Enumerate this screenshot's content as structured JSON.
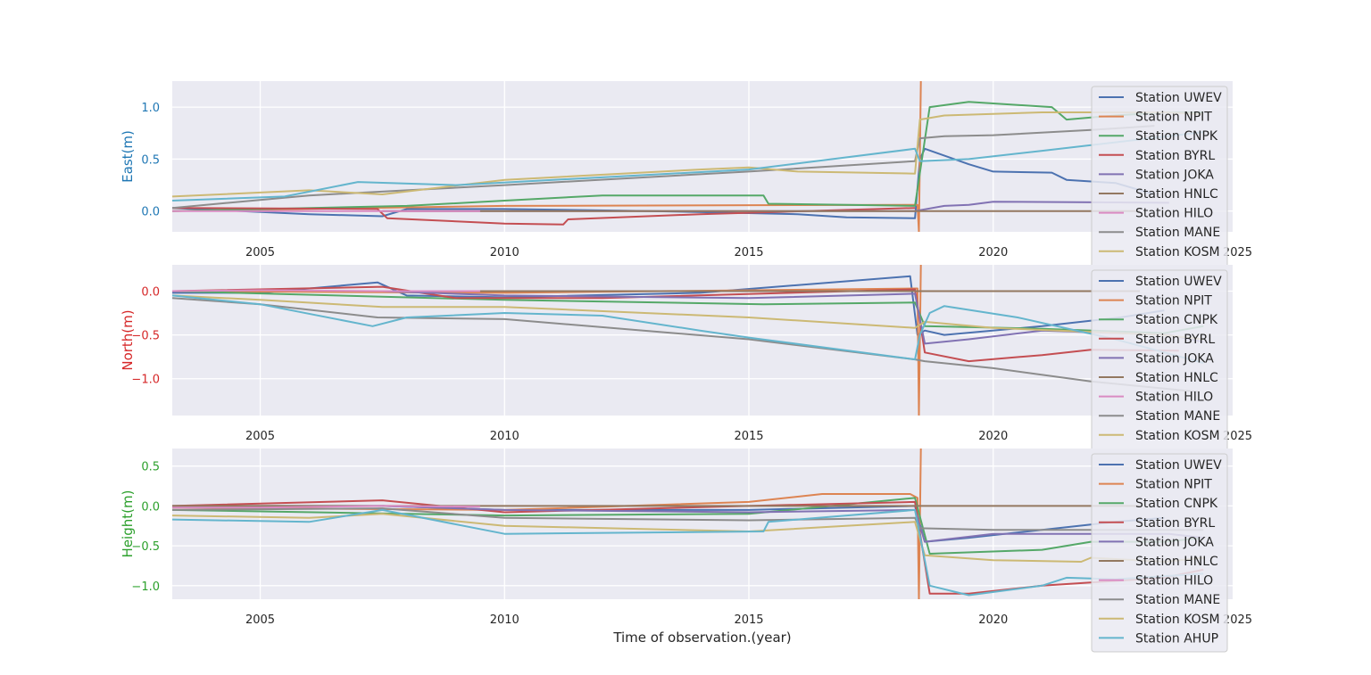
{
  "colors": {
    "background": "#eaeaf2",
    "grid": "#ffffff",
    "legend_bg": "#eaeaf2",
    "legend_border": "#cccccc",
    "east_label": "#1f77b4",
    "north_label": "#d62728",
    "height_label": "#2ca02c",
    "text": "#262626"
  },
  "chart_data": [
    {
      "type": "line",
      "panel": "east",
      "ylabel": "East(m)",
      "xlabel": "",
      "xlim": [
        2003.2,
        2024.9
      ],
      "ylim": [
        -0.2,
        1.25
      ],
      "xticks": [
        2005,
        2010,
        2015,
        2020,
        2025
      ],
      "xtick_labels": [
        "2005",
        "2010",
        "2015",
        "2020",
        "2025"
      ],
      "yticks": [
        0.0,
        0.5,
        1.0
      ],
      "ytick_labels": [
        "0.0",
        "0.5",
        "1.0"
      ],
      "grid": true,
      "legend_position": "right",
      "series": [
        {
          "name": "Station UWEV",
          "color": "#4c72b0",
          "x": [
            2003.2,
            2006,
            2007.5,
            2008,
            2010,
            2013,
            2016,
            2017,
            2018.4,
            2018.5,
            2018.6,
            2019.5,
            2020,
            2021.2,
            2021.5,
            2022.5,
            2023.3
          ],
          "y": [
            0.03,
            -0.03,
            -0.05,
            0.02,
            0.02,
            0.0,
            -0.03,
            -0.06,
            -0.07,
            0.5,
            0.6,
            0.45,
            0.38,
            0.37,
            0.3,
            0.27,
            0.16
          ]
        },
        {
          "name": "Station NPIT",
          "color": "#dd8452",
          "x": [
            2003.2,
            2010,
            2018.45,
            2018.48,
            2018.52
          ],
          "y": [
            0.0,
            0.05,
            0.06,
            -0.2,
            1.25
          ]
        },
        {
          "name": "Station CNPK",
          "color": "#55a868",
          "x": [
            2003.2,
            2008,
            2010,
            2012,
            2015.3,
            2015.4,
            2018.4,
            2018.7,
            2019.5,
            2021.2,
            2021.5,
            2022,
            2022.5,
            2023.5,
            2024.3
          ],
          "y": [
            0.0,
            0.05,
            0.1,
            0.15,
            0.15,
            0.07,
            0.05,
            1.0,
            1.05,
            1.0,
            0.88,
            0.9,
            0.92,
            0.95,
            0.95
          ]
        },
        {
          "name": "Station BYRL",
          "color": "#c44e52",
          "x": [
            2003.2,
            2007.4,
            2007.6,
            2010,
            2011.2,
            2011.3,
            2014,
            2018.4
          ],
          "y": [
            0.03,
            0.02,
            -0.07,
            -0.12,
            -0.13,
            -0.08,
            -0.03,
            0.03
          ]
        },
        {
          "name": "Station JOKA",
          "color": "#8172b3",
          "x": [
            2007.5,
            2010,
            2015,
            2018.4,
            2019,
            2019.5,
            2020,
            2023.6
          ],
          "y": [
            0.0,
            0.0,
            0.0,
            0.0,
            0.05,
            0.06,
            0.09,
            0.08
          ]
        },
        {
          "name": "Station HNLC",
          "color": "#937860",
          "x": [
            2007.5,
            2010,
            2015,
            2020,
            2023.0
          ],
          "y": [
            0.0,
            0.0,
            0.0,
            0.0,
            0.0
          ]
        },
        {
          "name": "Station HILO",
          "color": "#da8bc3",
          "x": [
            2003.2,
            2005,
            2007.5,
            2009.5
          ],
          "y": [
            0.0,
            0.0,
            0.0,
            0.0
          ]
        },
        {
          "name": "Station MANE",
          "color": "#8c8c8c",
          "x": [
            2003.2,
            2006,
            2008,
            2010,
            2015,
            2018.4,
            2018.5,
            2019,
            2020,
            2022,
            2023.3
          ],
          "y": [
            0.03,
            0.15,
            0.2,
            0.25,
            0.38,
            0.48,
            0.7,
            0.72,
            0.73,
            0.78,
            0.82
          ]
        },
        {
          "name": "Station KOSM",
          "color": "#ccb974",
          "x": [
            2003.2,
            2006,
            2007.5,
            2010,
            2014,
            2015,
            2016,
            2018.4,
            2018.5,
            2019,
            2021,
            2023.5,
            2024.3
          ],
          "y": [
            0.14,
            0.2,
            0.16,
            0.3,
            0.4,
            0.42,
            0.38,
            0.36,
            0.88,
            0.92,
            0.95,
            0.95,
            0.93
          ]
        },
        {
          "name": "Station AHUP",
          "color": "#64b5cd",
          "x": [
            2003.2,
            2005.5,
            2007,
            2009,
            2015,
            2018.4,
            2018.5,
            2019.5,
            2021,
            2024.3
          ],
          "y": [
            0.1,
            0.14,
            0.28,
            0.25,
            0.4,
            0.6,
            0.48,
            0.5,
            0.58,
            0.76
          ]
        }
      ]
    },
    {
      "type": "line",
      "panel": "north",
      "ylabel": "North(m)",
      "xlabel": "",
      "xlim": [
        2003.2,
        2024.9
      ],
      "ylim": [
        -1.42,
        0.3
      ],
      "xticks": [
        2005,
        2010,
        2015,
        2020,
        2025
      ],
      "xtick_labels": [
        "2005",
        "2010",
        "2015",
        "2020",
        "2025"
      ],
      "yticks": [
        0.0,
        -0.5,
        -1.0
      ],
      "ytick_labels": [
        "0.0",
        "−0.5",
        "−1.0"
      ],
      "grid": true,
      "legend_position": "right",
      "series": [
        {
          "name": "Station UWEV",
          "color": "#4c72b0",
          "x": [
            2003.2,
            2005,
            2007.4,
            2008,
            2010,
            2014,
            2018.3,
            2018.45,
            2018.6,
            2019,
            2021,
            2022.6,
            2023.5
          ],
          "y": [
            -0.02,
            -0.02,
            0.1,
            -0.05,
            -0.07,
            -0.02,
            0.17,
            -0.5,
            -0.45,
            -0.5,
            -0.4,
            -0.3,
            -0.22
          ]
        },
        {
          "name": "Station NPIT",
          "color": "#dd8452",
          "x": [
            2003.2,
            2010,
            2018.45,
            2018.48,
            2018.52
          ],
          "y": [
            0.0,
            -0.02,
            0.03,
            -1.42,
            0.3
          ]
        },
        {
          "name": "Station CNPK",
          "color": "#55a868",
          "x": [
            2003.2,
            2010,
            2015.3,
            2018.4,
            2018.6,
            2021,
            2023.5,
            2024.3
          ],
          "y": [
            0.0,
            -0.1,
            -0.15,
            -0.13,
            -0.4,
            -0.43,
            -0.48,
            -0.4
          ]
        },
        {
          "name": "Station BYRL",
          "color": "#c44e52",
          "x": [
            2003.2,
            2007.5,
            2009,
            2012,
            2018.4,
            2018.6,
            2019.5,
            2021,
            2022,
            2023.8
          ],
          "y": [
            0.0,
            0.05,
            -0.08,
            -0.08,
            0.02,
            -0.7,
            -0.8,
            -0.73,
            -0.67,
            -0.68
          ]
        },
        {
          "name": "Station JOKA",
          "color": "#8172b3",
          "x": [
            2007.5,
            2010,
            2015,
            2018.4,
            2018.6,
            2019.5,
            2021,
            2023.6,
            2024.3
          ],
          "y": [
            0.0,
            -0.05,
            -0.08,
            -0.03,
            -0.6,
            -0.55,
            -0.45,
            -0.5,
            -0.58
          ]
        },
        {
          "name": "Station HNLC",
          "color": "#937860",
          "x": [
            2007.5,
            2012,
            2016,
            2020,
            2023.0
          ],
          "y": [
            0.0,
            0.0,
            0.0,
            0.0,
            0.0
          ]
        },
        {
          "name": "Station HILO",
          "color": "#da8bc3",
          "x": [
            2003.2,
            2005,
            2007.5,
            2009.5
          ],
          "y": [
            0.0,
            0.01,
            0.0,
            0.0
          ]
        },
        {
          "name": "Station MANE",
          "color": "#8c8c8c",
          "x": [
            2003.2,
            2005,
            2007.4,
            2010,
            2015,
            2018.4,
            2018.6,
            2020,
            2022,
            2024.2
          ],
          "y": [
            -0.08,
            -0.15,
            -0.3,
            -0.32,
            -0.55,
            -0.78,
            -0.8,
            -0.88,
            -1.03,
            -1.15
          ]
        },
        {
          "name": "Station KOSM",
          "color": "#ccb974",
          "x": [
            2003.2,
            2005,
            2007.5,
            2010,
            2015,
            2018.4,
            2018.6,
            2020,
            2023.5,
            2024.3
          ],
          "y": [
            -0.05,
            -0.1,
            -0.18,
            -0.18,
            -0.3,
            -0.42,
            -0.35,
            -0.42,
            -0.5,
            -0.55
          ]
        },
        {
          "name": "Station AHUP",
          "color": "#64b5cd",
          "x": [
            2003.2,
            2005,
            2007.3,
            2008,
            2010,
            2012,
            2014,
            2015,
            2018.4,
            2018.5,
            2018.7,
            2019,
            2020.5,
            2022.5,
            2024.3
          ],
          "y": [
            -0.05,
            -0.15,
            -0.4,
            -0.3,
            -0.25,
            -0.28,
            -0.45,
            -0.53,
            -0.78,
            -0.5,
            -0.25,
            -0.17,
            -0.3,
            -0.55,
            -0.82
          ]
        }
      ]
    },
    {
      "type": "line",
      "panel": "height",
      "ylabel": "Height(m)",
      "xlabel": "Time of observation.(year)",
      "xlim": [
        2003.2,
        2024.9
      ],
      "ylim": [
        -1.17,
        0.72
      ],
      "xticks": [
        2005,
        2010,
        2015,
        2020,
        2025
      ],
      "xtick_labels": [
        "2005",
        "2010",
        "2015",
        "2020",
        "2025"
      ],
      "yticks": [
        0.5,
        0.0,
        -0.5,
        -1.0
      ],
      "ytick_labels": [
        "0.5",
        "0.0",
        "−0.5",
        "−1.0"
      ],
      "grid": true,
      "legend_position": "right",
      "series": [
        {
          "name": "Station UWEV",
          "color": "#4c72b0",
          "x": [
            2003.2,
            2007.5,
            2010,
            2015,
            2018.4,
            2018.6,
            2019.5,
            2021,
            2022.5,
            2023.5
          ],
          "y": [
            0.0,
            0.0,
            -0.05,
            -0.05,
            0.0,
            -0.45,
            -0.4,
            -0.3,
            -0.2,
            -0.15
          ]
        },
        {
          "name": "Station NPIT",
          "color": "#dd8452",
          "x": [
            2003.2,
            2010,
            2015,
            2016.5,
            2018.3,
            2018.45,
            2018.48,
            2018.52
          ],
          "y": [
            -0.02,
            -0.05,
            0.05,
            0.15,
            0.15,
            0.1,
            -1.17,
            0.72
          ]
        },
        {
          "name": "Station CNPK",
          "color": "#55a868",
          "x": [
            2003.2,
            2010,
            2015,
            2018.4,
            2018.7,
            2021,
            2022,
            2023.5,
            2024.3
          ],
          "y": [
            -0.05,
            -0.12,
            -0.1,
            0.1,
            -0.6,
            -0.55,
            -0.45,
            -0.45,
            -0.4
          ]
        },
        {
          "name": "Station BYRL",
          "color": "#c44e52",
          "x": [
            2003.2,
            2007.5,
            2010,
            2015,
            2018.4,
            2018.7,
            2019.5,
            2021,
            2023.5,
            2024.3
          ],
          "y": [
            0.0,
            0.07,
            -0.08,
            0.0,
            0.05,
            -1.1,
            -1.1,
            -1.0,
            -0.9,
            -0.8
          ]
        },
        {
          "name": "Station JOKA",
          "color": "#8172b3",
          "x": [
            2007.5,
            2010,
            2015,
            2018.4,
            2018.6,
            2020,
            2023.6,
            2024.3
          ],
          "y": [
            0.0,
            -0.05,
            -0.08,
            -0.05,
            -0.45,
            -0.35,
            -0.35,
            -0.4
          ]
        },
        {
          "name": "Station HNLC",
          "color": "#937860",
          "x": [
            2003.2,
            2008,
            2012,
            2016,
            2020,
            2023.0
          ],
          "y": [
            0.0,
            0.0,
            0.0,
            0.0,
            0.0,
            0.0
          ]
        },
        {
          "name": "Station HILO",
          "color": "#da8bc3",
          "x": [
            2003.2,
            2005,
            2007.5,
            2009.5
          ],
          "y": [
            -0.02,
            -0.02,
            0.0,
            -0.01
          ]
        },
        {
          "name": "Station MANE",
          "color": "#8c8c8c",
          "x": [
            2003.2,
            2007.5,
            2010,
            2015,
            2018.4,
            2018.5,
            2020,
            2023.5,
            2024.3
          ],
          "y": [
            -0.05,
            -0.03,
            -0.15,
            -0.18,
            -0.15,
            -0.28,
            -0.3,
            -0.3,
            -0.3
          ]
        },
        {
          "name": "Station KOSM",
          "color": "#ccb974",
          "x": [
            2003.2,
            2006,
            2007.5,
            2010,
            2015,
            2018.4,
            2018.6,
            2020,
            2021.8,
            2022,
            2023.5,
            2024.3
          ],
          "y": [
            -0.12,
            -0.15,
            -0.1,
            -0.25,
            -0.32,
            -0.2,
            -0.62,
            -0.68,
            -0.7,
            -0.65,
            -0.7,
            -0.65
          ]
        },
        {
          "name": "Station AHUP",
          "color": "#64b5cd",
          "x": [
            2003.2,
            2006,
            2007.5,
            2010,
            2015.3,
            2015.4,
            2018.4,
            2018.7,
            2019.5,
            2021,
            2021.5,
            2022.5,
            2024.3
          ],
          "y": [
            -0.17,
            -0.2,
            -0.05,
            -0.35,
            -0.32,
            -0.2,
            -0.05,
            -1.0,
            -1.12,
            -1.0,
            -0.9,
            -0.92,
            -0.85
          ]
        }
      ]
    }
  ]
}
